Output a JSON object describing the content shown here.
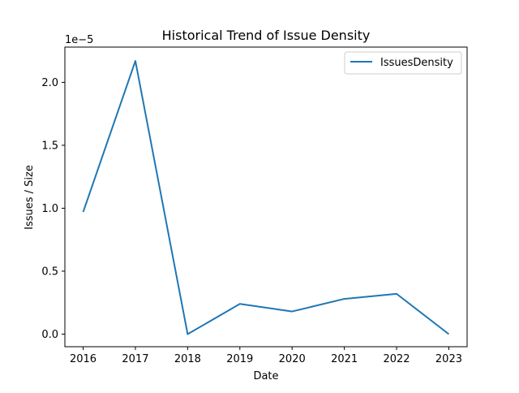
{
  "chart_data": {
    "type": "line",
    "title": "Historical Trend of Issue Density",
    "xlabel": "Date",
    "ylabel": "Issues / Size",
    "y_offset_label": "1e−5",
    "x": [
      2016,
      2017,
      2018,
      2019,
      2020,
      2021,
      2022,
      2023
    ],
    "xticks": [
      "2016",
      "2017",
      "2018",
      "2019",
      "2020",
      "2021",
      "2022",
      "2023"
    ],
    "yticks": [
      {
        "value": 0.0,
        "label": "0.0"
      },
      {
        "value": 0.5,
        "label": "0.5"
      },
      {
        "value": 1.0,
        "label": "1.0"
      },
      {
        "value": 1.5,
        "label": "1.5"
      },
      {
        "value": 2.0,
        "label": "2.0"
      }
    ],
    "xlim": [
      2015.65,
      2023.35
    ],
    "ylim": [
      -0.1,
      2.28
    ],
    "y_scale_note": "values shown in units of 1e-5",
    "series": [
      {
        "name": "IssuesDensity",
        "color": "#1f77b4",
        "values": [
          0.97,
          2.17,
          0.0,
          0.24,
          0.18,
          0.28,
          0.32,
          0.0
        ]
      }
    ],
    "legend": {
      "placement": "top-right"
    },
    "grid": false
  }
}
